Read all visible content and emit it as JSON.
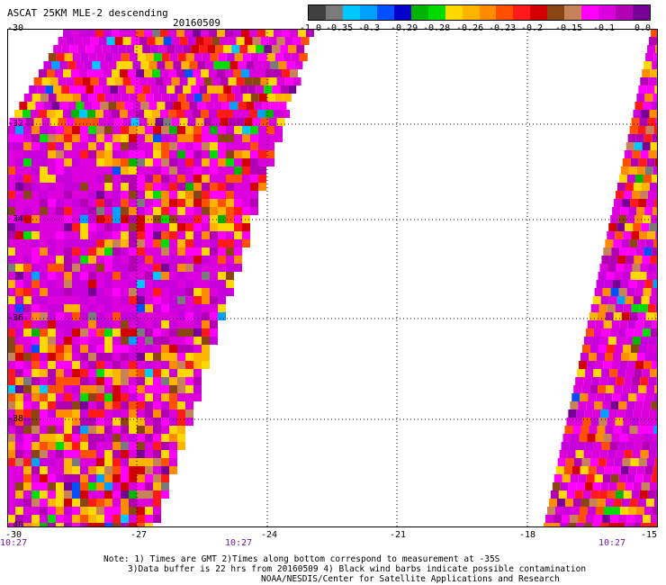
{
  "header": {
    "title": "ASCAT 25KM MLE-2 descending",
    "date": "20160509"
  },
  "colorbar": {
    "colors": [
      "#404040",
      "#7a7a7a",
      "#00c8ff",
      "#00a0ff",
      "#0050ff",
      "#0000c8",
      "#00b400",
      "#00dc00",
      "#ffd800",
      "#ffb400",
      "#ff8c00",
      "#ff5000",
      "#ff1a1a",
      "#d20000",
      "#8b4513",
      "#c8825a",
      "#ff00ff",
      "#dc00dc",
      "#b400b4",
      "#780096"
    ],
    "labels": [
      "-1.0",
      "-0.35",
      "-0.3",
      "-0.29",
      "-0.28",
      "-0.26",
      "-0.23",
      "-0.2",
      "-0.15",
      "-0.1",
      "0.0"
    ]
  },
  "axes": {
    "lat_labels": [
      "-30",
      "-32",
      "-34",
      "-36",
      "-38",
      "-40"
    ],
    "lon_labels": [
      "-30",
      "-27",
      "-24",
      "-21",
      "-18",
      "-15"
    ]
  },
  "times": [
    "10:27",
    "10:27",
    "10:27"
  ],
  "notes": [
    "Note: 1) Times are GMT 2)Times along bottom correspond to measurement at -35S",
    "3)Data buffer is 22 hrs from 20160509 4) Black wind barbs indicate possible contamination",
    "NOAA/NESDIS/Center for Satellite Applications and Research"
  ],
  "map_data": {
    "lon_range": [
      -30,
      -15
    ],
    "lat_range": [
      -40,
      -30
    ],
    "swaths": [
      {
        "side": "west",
        "description_colors": "mixed purple, red, yellow, orange, brown with scattered blue/green"
      },
      {
        "side": "east",
        "description_colors": "mixed purple, red, yellow, orange, brown with scattered blue/green"
      }
    ]
  }
}
